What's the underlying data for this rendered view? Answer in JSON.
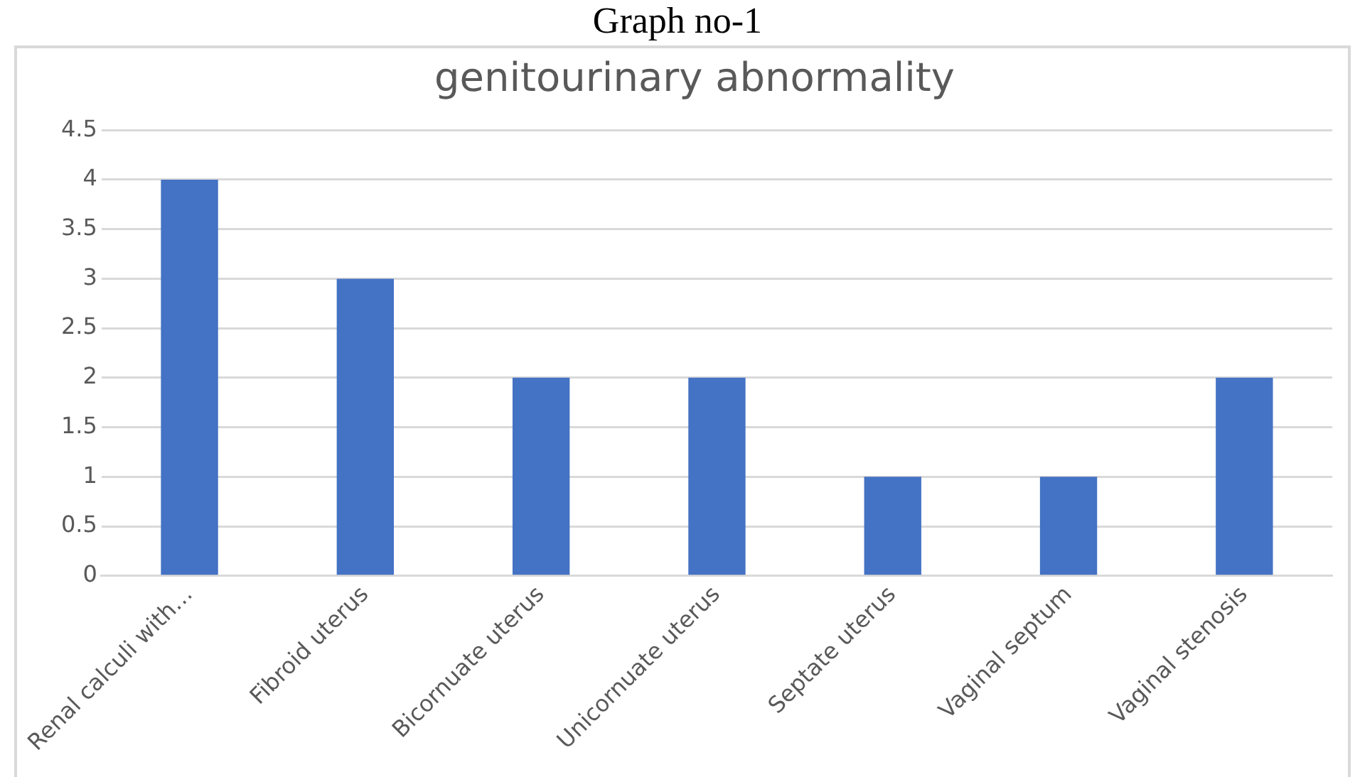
{
  "chart_data": {
    "type": "bar",
    "title": "genitourinary abnormality",
    "annotations": [
      "Graph no-1"
    ],
    "categories": [
      "Renal calculi with…",
      "Fibroid uterus",
      "Bicornuate uterus",
      "Unicornuate uterus",
      "Septate uterus",
      "Vaginal septum",
      "Vaginal stenosis"
    ],
    "values": [
      4,
      3,
      2,
      2,
      1,
      1,
      2
    ],
    "color": "#4472c4",
    "ylim": [
      0,
      4.5
    ],
    "yticks": [
      0,
      0.5,
      1,
      1.5,
      2,
      2.5,
      3,
      3.5,
      4,
      4.5
    ],
    "grid": "y"
  }
}
